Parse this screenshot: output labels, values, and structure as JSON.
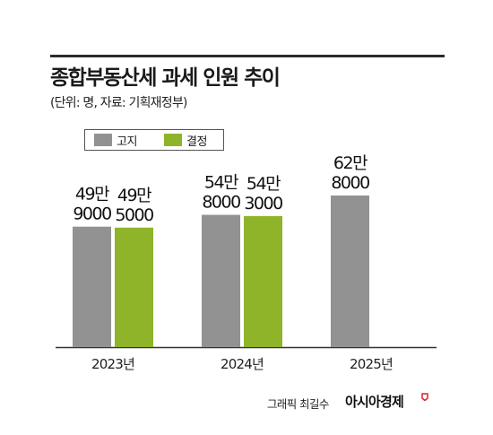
{
  "header": {
    "title": "종합부동산세 과세 인원 추이",
    "subtitle": "(단위: 명, 자료: 기획재정부)"
  },
  "legend": {
    "items": [
      {
        "label": "고지",
        "color": "#929292"
      },
      {
        "label": "결정",
        "color": "#8fb42a"
      }
    ]
  },
  "chart_data": {
    "type": "bar",
    "title": "종합부동산세 과세 인원 추이",
    "subtitle": "(단위: 명, 자료: 기획재정부)",
    "categories": [
      "2023년",
      "2024년",
      "2025년"
    ],
    "series": [
      {
        "name": "고지",
        "color": "#929292",
        "values": [
          499000,
          548000,
          628000
        ],
        "labels": [
          [
            "49만",
            "9000"
          ],
          [
            "54만",
            "8000"
          ],
          [
            "62만",
            "8000"
          ]
        ]
      },
      {
        "name": "결정",
        "color": "#8fb42a",
        "values": [
          495000,
          543000,
          null
        ],
        "labels": [
          [
            "49만",
            "5000"
          ],
          [
            "54만",
            "3000"
          ],
          null
        ]
      }
    ],
    "ylim": [
      0,
      628000
    ],
    "grid": false,
    "legend_position": "top-left"
  },
  "footer": {
    "credit": "그래픽 최길수",
    "logo": "아시아경제",
    "logo_color": "#d9262e"
  }
}
